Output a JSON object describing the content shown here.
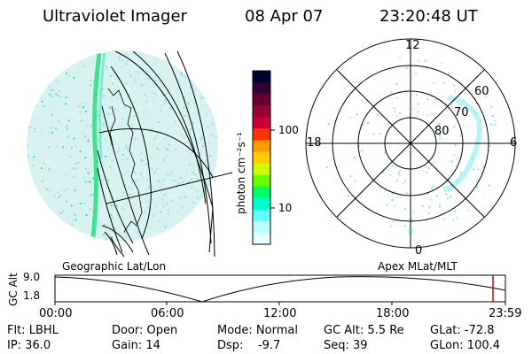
{
  "header": {
    "title": "Ultraviolet Imager",
    "date": "08 Apr 07",
    "time": "23:20:48 UT"
  },
  "colorbar": {
    "label": "photon cm⁻²s⁻¹",
    "ticks": [
      "100",
      "10"
    ],
    "colors": [
      "#000033",
      "#330033",
      "#660033",
      "#990033",
      "#cc0033",
      "#ff3300",
      "#ff9900",
      "#ffcc00",
      "#ccff00",
      "#66ff00",
      "#00ff66",
      "#00ffcc",
      "#66ffff",
      "#bbffff",
      "#e6ffff"
    ]
  },
  "left_panel": {
    "caption": "Geographic Lat/Lon"
  },
  "polar_panel": {
    "caption": "Apex MLat/MLT",
    "hour_labels": {
      "top": "12",
      "left": "18",
      "right": "6",
      "bottom": "0"
    },
    "lat_labels": [
      "60",
      "70",
      "80"
    ]
  },
  "altitude_plot": {
    "ylabel": "GC Alt",
    "yticks": [
      "9.0",
      "1.8"
    ],
    "xticks": [
      "00:00",
      "06:00",
      "12:00",
      "18:00",
      "23:59"
    ],
    "current_marker_color": "#cc0000"
  },
  "status": {
    "row1": {
      "filter": "Flt: LBHL",
      "door": "Door: Open",
      "mode": "Mode: Normal",
      "gc_alt": "GC Alt: 5.5 Re",
      "glat": "GLat: -72.8"
    },
    "row2": {
      "ip": "IP: 36.0",
      "gain": "Gain: 14",
      "dsp": "Dsp:    -9.7",
      "seq": "Seq: 39",
      "glon": "GLon: 100.4"
    }
  }
}
